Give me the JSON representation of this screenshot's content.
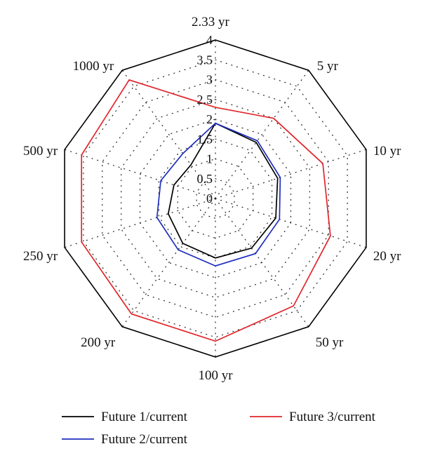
{
  "chart_data": {
    "type": "radar",
    "categories": [
      "2.33 yr",
      "5 yr",
      "10 yr",
      "20 yr",
      "50 yr",
      "100 yr",
      "200 yr",
      "250 yr",
      "500 yr",
      "1000 yr"
    ],
    "radial_ticks": [
      "0",
      "0.5",
      "1",
      "1.5",
      "2",
      "2.5",
      "3",
      "3.5",
      "4"
    ],
    "rlim": [
      0,
      4
    ],
    "grid": true,
    "series": [
      {
        "name": "Future 1/current",
        "color": "#000000",
        "values": [
          1.9,
          1.75,
          1.65,
          1.6,
          1.55,
          1.5,
          1.4,
          1.25,
          1.1,
          1.05
        ]
      },
      {
        "name": "Future 2/current",
        "color": "#1f2fbf",
        "values": [
          1.9,
          1.8,
          1.72,
          1.7,
          1.72,
          1.7,
          1.6,
          1.55,
          1.45,
          1.4
        ]
      },
      {
        "name": "Future 3/current",
        "color": "#e0262b",
        "values": [
          2.3,
          2.5,
          2.85,
          3.05,
          3.35,
          3.6,
          3.6,
          3.55,
          3.55,
          3.7
        ]
      }
    ],
    "legend_position": "bottom"
  }
}
